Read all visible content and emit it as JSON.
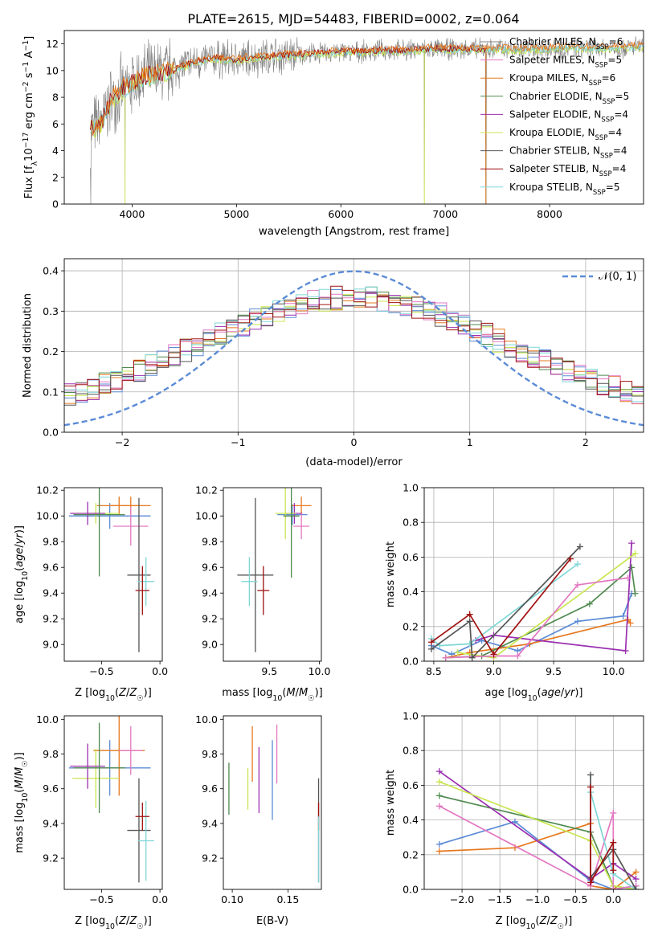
{
  "figure": {
    "title": "PLATE=2615, MJD=54483, FIBERID=0002, z=0.064"
  },
  "colors": {
    "chabrier_miles": "#808080",
    "salpeter_miles": "#e377c2",
    "kroupa_miles": "#e6781e",
    "chabrier_elodie": "#4f8a4f",
    "salpeter_elodie": "#9b30b0",
    "kroupa_elodie": "#c8e650",
    "chabrier_stelib": "#555555",
    "salpeter_stelib": "#a01010",
    "kroupa_stelib": "#7fd6d6",
    "blue": "#5b8bd6",
    "green": "#4f8a4f",
    "orange": "#e6781e",
    "purple": "#9b30b0",
    "lime": "#c8e650",
    "pink": "#e377c2",
    "cyan": "#7fd6d6",
    "dark": "#555555",
    "darkred": "#a01010"
  },
  "chart_data": [
    {
      "type": "line",
      "id": "spectrum",
      "xlabel": "wavelength [Angstrom, rest frame]",
      "ylabel": "Flux [fλ10⁻¹⁷ erg cm⁻² s⁻¹ A⁻¹]",
      "xlim": [
        3350,
        8900
      ],
      "ylim": [
        0,
        13
      ],
      "xticks": [
        4000,
        5000,
        6000,
        7000,
        8000
      ],
      "yticks": [
        0,
        2,
        4,
        6,
        8,
        10,
        12
      ],
      "continuum": {
        "x": [
          3600,
          3700,
          3800,
          3900,
          4000,
          4100,
          4200,
          4300,
          4400,
          4500,
          4600,
          4800,
          5000,
          5200,
          5400,
          5600,
          5800,
          6000,
          6200,
          6400,
          6600,
          6800,
          7000,
          7200,
          7400,
          7800,
          8200,
          8600,
          8900
        ],
        "y": [
          5.6,
          6.0,
          7.8,
          8.6,
          9.0,
          9.5,
          9.7,
          9.9,
          10.0,
          10.4,
          10.6,
          10.9,
          10.8,
          11.0,
          11.1,
          11.2,
          11.3,
          11.4,
          11.4,
          11.5,
          11.5,
          11.6,
          11.6,
          11.6,
          11.6,
          11.6,
          11.7,
          11.7,
          11.8
        ]
      },
      "legend": [
        {
          "label": "Chabrier MILES, N",
          "n": "=6",
          "color_key": "chabrier_miles"
        },
        {
          "label": "Salpeter MILES, N",
          "n": "=5",
          "color_key": "salpeter_miles"
        },
        {
          "label": "Kroupa MILES, N",
          "n": "=6",
          "color_key": "kroupa_miles"
        },
        {
          "label": "Chabrier ELODIE, N",
          "n": "=5",
          "color_key": "chabrier_elodie"
        },
        {
          "label": "Salpeter ELODIE, N",
          "n": "=4",
          "color_key": "salpeter_elodie"
        },
        {
          "label": "Kroupa ELODIE, N",
          "n": "=4",
          "color_key": "kroupa_elodie"
        },
        {
          "label": "Chabrier STELIB, N",
          "n": "=4",
          "color_key": "chabrier_stelib"
        },
        {
          "label": "Salpeter STELIB, N",
          "n": "=4",
          "color_key": "salpeter_stelib"
        },
        {
          "label": "Kroupa STELIB, N",
          "n": "=5",
          "color_key": "kroupa_stelib"
        }
      ],
      "legend_sub": "SSP",
      "legend_position": "right"
    },
    {
      "type": "bar",
      "id": "residuals",
      "xlabel": "(data-model)/error",
      "ylabel": "Normed distribution",
      "xlim": [
        -2.5,
        2.5
      ],
      "ylim": [
        0,
        0.43
      ],
      "xticks": [
        -2,
        -1,
        0,
        1,
        2
      ],
      "yticks": [
        0.0,
        0.1,
        0.2,
        0.3,
        0.4
      ],
      "gaussian_label": "𝒩(0, 1)",
      "legend_position": "top-right"
    },
    {
      "type": "scatter",
      "id": "age_vs_z",
      "xlabel": "Z [log10(Z/Z☉)]",
      "ylabel": "age  [log10(age/yr)]",
      "xlim": [
        -0.82,
        0.02
      ],
      "ylim": [
        8.87,
        10.22
      ],
      "xticks": [
        -0.5,
        0.0
      ],
      "yticks": [
        9.0,
        9.2,
        9.4,
        9.6,
        9.8,
        10.0,
        10.2
      ],
      "points": [
        {
          "x": -0.43,
          "y": 10.0,
          "xerr": 0.35,
          "yerr": 0.1,
          "color_key": "blue"
        },
        {
          "x": -0.35,
          "y": 10.08,
          "xerr": 0.19,
          "yerr": 0.07,
          "color_key": "orange"
        },
        {
          "x": -0.25,
          "y": 10.08,
          "xerr": 0.17,
          "yerr": 0.07,
          "color_key": "orange"
        },
        {
          "x": -0.55,
          "y": 10.02,
          "xerr": 0.2,
          "yerr": 0.08,
          "color_key": "lime"
        },
        {
          "x": -0.62,
          "y": 10.02,
          "xerr": 0.15,
          "yerr": 0.09,
          "color_key": "purple"
        },
        {
          "x": -0.52,
          "y": 10.01,
          "xerr": 0.22,
          "yerr": 0.48,
          "color_key": "green"
        },
        {
          "x": -0.25,
          "y": 9.92,
          "xerr": 0.15,
          "yerr": 0.15,
          "color_key": "pink"
        },
        {
          "x": -0.18,
          "y": 9.54,
          "xerr": 0.1,
          "yerr": 0.6,
          "color_key": "dark"
        },
        {
          "x": -0.12,
          "y": 9.49,
          "xerr": 0.07,
          "yerr": 0.19,
          "color_key": "cyan"
        },
        {
          "x": -0.15,
          "y": 9.42,
          "xerr": 0.06,
          "yerr": 0.19,
          "color_key": "darkred"
        }
      ]
    },
    {
      "type": "scatter",
      "id": "age_vs_mass",
      "xlabel": "mass [log10(M/M☉)]",
      "ylabel": "",
      "xlim": [
        9.04,
        10.02
      ],
      "ylim": [
        8.87,
        10.22
      ],
      "xticks": [
        9.5,
        10.0
      ],
      "yticks": [
        9.0,
        9.2,
        9.4,
        9.6,
        9.8,
        10.0,
        10.2
      ],
      "points": [
        {
          "x": 9.73,
          "y": 10.01,
          "xerr": 0.15,
          "yerr": 0.08,
          "color_key": "blue"
        },
        {
          "x": 9.82,
          "y": 10.08,
          "xerr": 0.1,
          "yerr": 0.07,
          "color_key": "orange"
        },
        {
          "x": 9.75,
          "y": 10.02,
          "xerr": 0.08,
          "yerr": 0.08,
          "color_key": "purple"
        },
        {
          "x": 9.66,
          "y": 10.02,
          "xerr": 0.1,
          "yerr": 0.2,
          "color_key": "lime"
        },
        {
          "x": 9.72,
          "y": 10.0,
          "xerr": 0.08,
          "yerr": 0.48,
          "color_key": "green"
        },
        {
          "x": 9.82,
          "y": 9.92,
          "xerr": 0.08,
          "yerr": 0.1,
          "color_key": "pink"
        },
        {
          "x": 9.36,
          "y": 9.54,
          "xerr": 0.18,
          "yerr": 0.6,
          "color_key": "dark"
        },
        {
          "x": 9.3,
          "y": 9.49,
          "xerr": 0.08,
          "yerr": 0.19,
          "color_key": "cyan"
        },
        {
          "x": 9.44,
          "y": 9.42,
          "xerr": 0.06,
          "yerr": 0.19,
          "color_key": "darkred"
        }
      ]
    },
    {
      "type": "line",
      "id": "weight_vs_age",
      "xlabel": "age  [log10(age/yr)]",
      "ylabel": "mass weight",
      "xlim": [
        8.42,
        10.25
      ],
      "ylim": [
        0,
        1.0
      ],
      "xticks": [
        8.5,
        9.0,
        9.5,
        10.0
      ],
      "yticks": [
        0.0,
        0.2,
        0.4,
        0.6,
        0.8,
        1.0
      ],
      "series": [
        {
          "color_key": "blue",
          "x": [
            8.48,
            8.65,
            8.9,
            9.2,
            9.7,
            10.08,
            10.15
          ],
          "y": [
            0.09,
            0.04,
            0.12,
            0.06,
            0.23,
            0.26,
            0.39
          ]
        },
        {
          "color_key": "orange",
          "x": [
            8.6,
            8.8,
            9.3,
            10.12,
            10.14
          ],
          "y": [
            0.02,
            0.05,
            0.1,
            0.24,
            0.22
          ]
        },
        {
          "color_key": "green",
          "x": [
            8.6,
            8.9,
            9.8,
            10.15,
            10.18
          ],
          "y": [
            0.02,
            0.03,
            0.33,
            0.54,
            0.39
          ]
        },
        {
          "color_key": "purple",
          "x": [
            8.85,
            9.0,
            10.1,
            10.15
          ],
          "y": [
            0.12,
            0.15,
            0.06,
            0.68
          ]
        },
        {
          "color_key": "lime",
          "x": [
            8.7,
            9.0,
            10.18
          ],
          "y": [
            0.05,
            0.02,
            0.62
          ]
        },
        {
          "color_key": "pink",
          "x": [
            8.6,
            9.0,
            9.2,
            9.7,
            10.12
          ],
          "y": [
            0.02,
            0.03,
            0.03,
            0.44,
            0.48
          ]
        },
        {
          "color_key": "cyan",
          "x": [
            8.48,
            8.55,
            8.8,
            9.7
          ],
          "y": [
            0.13,
            0.09,
            0.1,
            0.56
          ]
        },
        {
          "color_key": "dark",
          "x": [
            8.48,
            8.8,
            8.82,
            9.72
          ],
          "y": [
            0.07,
            0.23,
            0.02,
            0.66
          ]
        },
        {
          "color_key": "darkred",
          "x": [
            8.48,
            8.8,
            9.0,
            9.64
          ],
          "y": [
            0.11,
            0.27,
            0.04,
            0.59
          ]
        }
      ]
    },
    {
      "type": "scatter",
      "id": "mass_vs_z",
      "xlabel": "Z [log10(Z/Z☉)]",
      "ylabel": "mass [log10(M/M☉)]",
      "xlim": [
        -0.82,
        0.02
      ],
      "ylim": [
        9.02,
        10.02
      ],
      "xticks": [
        -0.5,
        0.0
      ],
      "yticks": [
        9.2,
        9.4,
        9.6,
        9.8,
        10.0
      ],
      "points": [
        {
          "x": -0.43,
          "y": 9.72,
          "xerr": 0.35,
          "yerr": 0.16,
          "color_key": "blue"
        },
        {
          "x": -0.35,
          "y": 9.82,
          "xerr": 0.22,
          "yerr": 0.26,
          "color_key": "orange"
        },
        {
          "x": -0.55,
          "y": 9.66,
          "xerr": 0.2,
          "yerr": 0.17,
          "color_key": "lime"
        },
        {
          "x": -0.62,
          "y": 9.73,
          "xerr": 0.15,
          "yerr": 0.13,
          "color_key": "purple"
        },
        {
          "x": -0.52,
          "y": 9.72,
          "xerr": 0.22,
          "yerr": 0.26,
          "color_key": "green"
        },
        {
          "x": -0.25,
          "y": 9.82,
          "xerr": 0.1,
          "yerr": 0.14,
          "color_key": "pink"
        },
        {
          "x": -0.18,
          "y": 9.36,
          "xerr": 0.1,
          "yerr": 0.3,
          "color_key": "dark"
        },
        {
          "x": -0.12,
          "y": 9.3,
          "xerr": 0.07,
          "yerr": 0.23,
          "color_key": "cyan"
        },
        {
          "x": -0.15,
          "y": 9.44,
          "xerr": 0.06,
          "yerr": 0.08,
          "color_key": "darkred"
        }
      ]
    },
    {
      "type": "scatter",
      "id": "mass_vs_ebv",
      "xlabel": "E(B-V)",
      "ylabel": "",
      "xlim": [
        0.092,
        0.18
      ],
      "ylim": [
        9.02,
        10.02
      ],
      "xticks": [
        0.1,
        0.15
      ],
      "yticks": [
        9.2,
        9.4,
        9.6,
        9.8,
        10.0
      ],
      "points": [
        {
          "x": 0.097,
          "y": 9.6,
          "yerr": 0.15,
          "color_key": "green"
        },
        {
          "x": 0.114,
          "y": 9.6,
          "yerr": 0.12,
          "color_key": "lime"
        },
        {
          "x": 0.118,
          "y": 9.8,
          "yerr": 0.16,
          "color_key": "orange"
        },
        {
          "x": 0.124,
          "y": 9.65,
          "yerr": 0.19,
          "color_key": "purple"
        },
        {
          "x": 0.136,
          "y": 9.65,
          "yerr": 0.23,
          "color_key": "blue"
        },
        {
          "x": 0.14,
          "y": 9.8,
          "yerr": 0.17,
          "color_key": "pink"
        },
        {
          "x": 0.1775,
          "y": 9.36,
          "yerr": 0.3,
          "color_key": "dark"
        },
        {
          "x": 0.1775,
          "y": 9.44,
          "yerr": 0.08,
          "color_key": "darkred"
        },
        {
          "x": 0.1775,
          "y": 9.25,
          "yerr": 0.19,
          "color_key": "cyan"
        }
      ]
    },
    {
      "type": "line",
      "id": "weight_vs_z",
      "xlabel": "Z [log10(Z/Z☉)]",
      "ylabel": "mass weight",
      "xlim": [
        -2.5,
        0.4
      ],
      "ylim": [
        0,
        1.0
      ],
      "xticks": [
        -2.0,
        -1.5,
        -1.0,
        -0.5,
        0.0
      ],
      "yticks": [
        0.0,
        0.2,
        0.4,
        0.6,
        0.8,
        1.0
      ],
      "series": [
        {
          "color_key": "blue",
          "x": [
            -2.3,
            -1.3,
            -0.3,
            0.0,
            0.3
          ],
          "y": [
            0.26,
            0.39,
            0.05,
            0.0,
            0.02
          ]
        },
        {
          "color_key": "orange",
          "x": [
            -2.3,
            -1.3,
            -0.3,
            -0.3,
            0.0,
            0.3
          ],
          "y": [
            0.22,
            0.24,
            0.38,
            0.02,
            0.0,
            0.1
          ]
        },
        {
          "color_key": "green",
          "x": [
            -2.3,
            -0.3,
            0.0,
            0.3
          ],
          "y": [
            0.54,
            0.33,
            0.02,
            0.0
          ]
        },
        {
          "color_key": "purple",
          "x": [
            -2.3,
            -0.3,
            0.0,
            0.3
          ],
          "y": [
            0.68,
            0.06,
            0.15,
            0.06
          ]
        },
        {
          "color_key": "lime",
          "x": [
            -2.3,
            -0.3,
            0.0,
            0.3
          ],
          "y": [
            0.62,
            0.28,
            0.02,
            0.0
          ]
        },
        {
          "color_key": "pink",
          "x": [
            -2.3,
            -0.3,
            0.0,
            0.0,
            0.3
          ],
          "y": [
            0.48,
            0.02,
            0.44,
            0.0,
            0.02
          ]
        },
        {
          "color_key": "cyan",
          "x": [
            -0.3,
            0.0,
            0.3
          ],
          "y": [
            0.56,
            0.09,
            0.0
          ]
        },
        {
          "color_key": "dark",
          "x": [
            -0.3,
            -0.3,
            0.0,
            0.3
          ],
          "y": [
            0.66,
            0.07,
            0.23,
            0.0
          ]
        },
        {
          "color_key": "darkred",
          "x": [
            -0.3,
            -0.3,
            0.0,
            0.0
          ],
          "y": [
            0.59,
            0.04,
            0.27,
            0.11
          ]
        }
      ]
    }
  ]
}
